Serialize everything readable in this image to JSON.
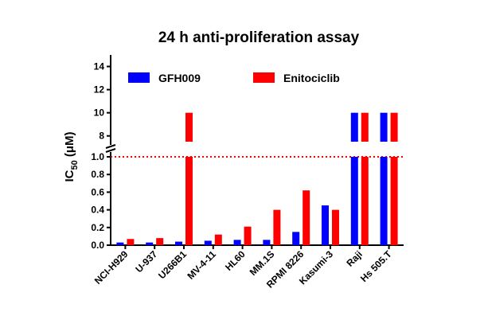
{
  "chart_data": {
    "type": "bar",
    "title": "24 h anti-proliferation assay",
    "ylabel_main": "IC",
    "ylabel_sub": "50",
    "ylabel_unit": " (μM)",
    "categories": [
      "NCI-H929",
      "U-937",
      "U266B1",
      "MV-4-11",
      "HL60",
      "MM.1S",
      "RPMI 8226",
      "Kasumi-3",
      "Raji",
      "Hs 505.T"
    ],
    "series": [
      {
        "name": "GFH009",
        "color": "#0000ff",
        "values": [
          0.03,
          0.03,
          0.04,
          0.05,
          0.06,
          0.06,
          0.15,
          0.45,
          10,
          10
        ]
      },
      {
        "name": "Enitociclib",
        "color": "#ff0000",
        "values": [
          0.07,
          0.08,
          10,
          0.12,
          0.21,
          0.4,
          0.62,
          0.4,
          10,
          10
        ]
      }
    ],
    "axis": {
      "broken": true,
      "lower_range": [
        0,
        1.0
      ],
      "upper_range": [
        7.5,
        15
      ],
      "lower_ticks": [
        "0.0",
        "0.2",
        "0.4",
        "0.6",
        "0.8",
        "1.0"
      ],
      "upper_ticks": [
        "8",
        "10",
        "12",
        "14"
      ]
    },
    "reference_line": {
      "value": 1.0,
      "color": "#ff0000",
      "style": "dotted"
    },
    "legend_position": "top-left"
  }
}
